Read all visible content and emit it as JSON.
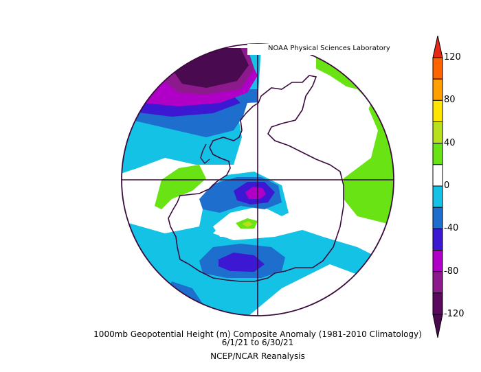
{
  "credit": "NOAA Physical Sciences Laboratory",
  "caption": {
    "line1": "1000mb Geopotential Height (m) Composite Anomaly (1981-2010 Climatology)",
    "line2": "6/1/21 to 6/30/21",
    "line3": "NCEP/NCAR Reanalysis"
  },
  "colorbar": {
    "levels": [
      {
        "value": -120,
        "label": "-120",
        "color": "#5a0a5e"
      },
      {
        "value": -100,
        "label": "",
        "color": "#8c1a8c"
      },
      {
        "value": -80,
        "label": "-80",
        "color": "#b000c8"
      },
      {
        "value": -60,
        "label": "",
        "color": "#3c18d2"
      },
      {
        "value": -40,
        "label": "-40",
        "color": "#1e6ecd"
      },
      {
        "value": -20,
        "label": "",
        "color": "#14c2e6"
      },
      {
        "value": 0,
        "label": "0",
        "color": "#ffffff"
      },
      {
        "value": 20,
        "label": "",
        "color": "#ffffff"
      },
      {
        "value": 40,
        "label": "40",
        "color": "#6ae314"
      },
      {
        "value": 60,
        "label": "",
        "color": "#b8e01c"
      },
      {
        "value": 80,
        "label": "80",
        "color": "#ffe600"
      },
      {
        "value": 100,
        "label": "",
        "color": "#ffa000"
      },
      {
        "value": 120,
        "label": "120",
        "color": "#ff6400"
      }
    ],
    "end_low": "#4a0a50",
    "end_high": "#e62814"
  },
  "colors": {
    "deep_purple": "#4a0a50",
    "magenta": "#b000c8",
    "violet": "#8c1a8c",
    "blue_violet": "#3c18d2",
    "mid_blue": "#1e6ecd",
    "cyan": "#14c2e6",
    "green": "#6ae314",
    "yellow_green": "#b8e01c",
    "coast": "#3a0a3c"
  }
}
